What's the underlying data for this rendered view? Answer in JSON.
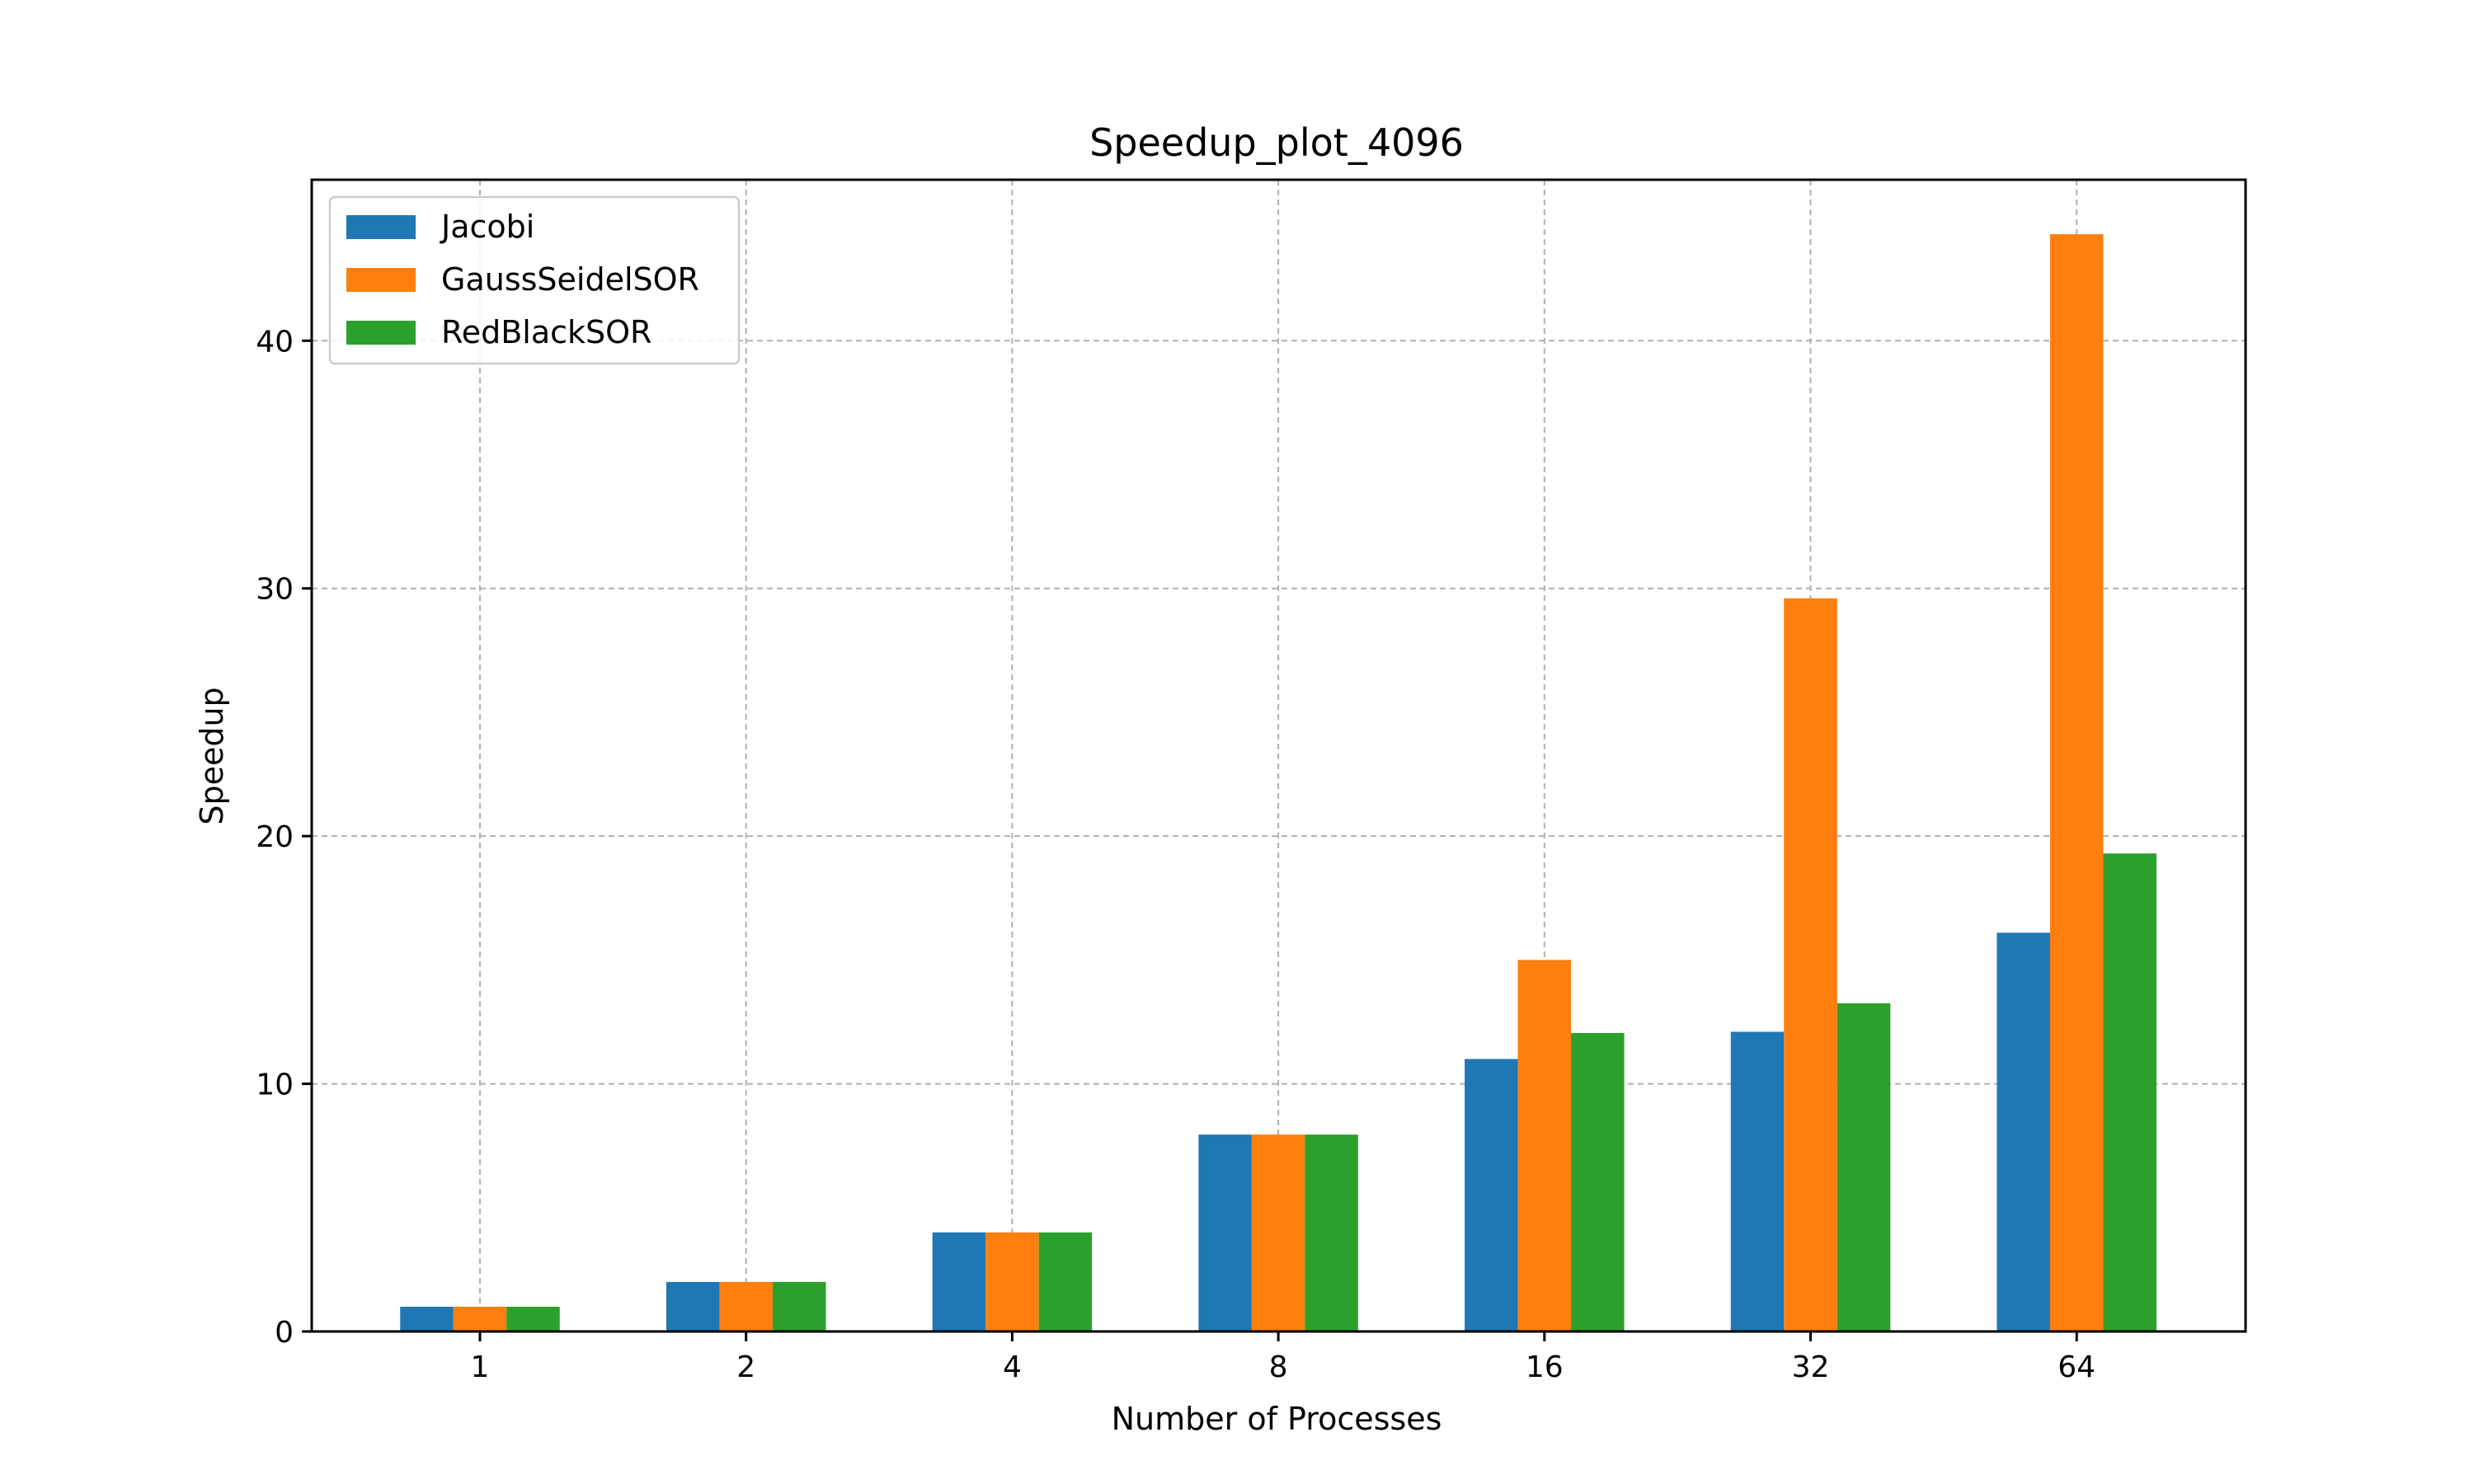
{
  "chart_data": {
    "type": "bar",
    "title": "Speedup_plot_4096",
    "xlabel": "Number of Processes",
    "ylabel": "Speedup",
    "categories": [
      "1",
      "2",
      "4",
      "8",
      "16",
      "32",
      "64"
    ],
    "yticks": [
      "0",
      "10",
      "20",
      "30",
      "40"
    ],
    "ylim": [
      0,
      46.5
    ],
    "grid": true,
    "legend_position": "top-left",
    "series": [
      {
        "name": "Jacobi",
        "color": "#1f77b4",
        "values": [
          1.0,
          2.0,
          4.0,
          7.95,
          11.0,
          12.1,
          16.1
        ]
      },
      {
        "name": "GaussSeidelSOR",
        "color": "#ff7f0e",
        "values": [
          1.0,
          2.0,
          4.0,
          7.95,
          15.0,
          29.6,
          44.3
        ]
      },
      {
        "name": "RedBlackSOR",
        "color": "#2ca02c",
        "values": [
          1.0,
          2.0,
          4.0,
          7.95,
          12.05,
          13.25,
          19.3
        ]
      }
    ]
  }
}
